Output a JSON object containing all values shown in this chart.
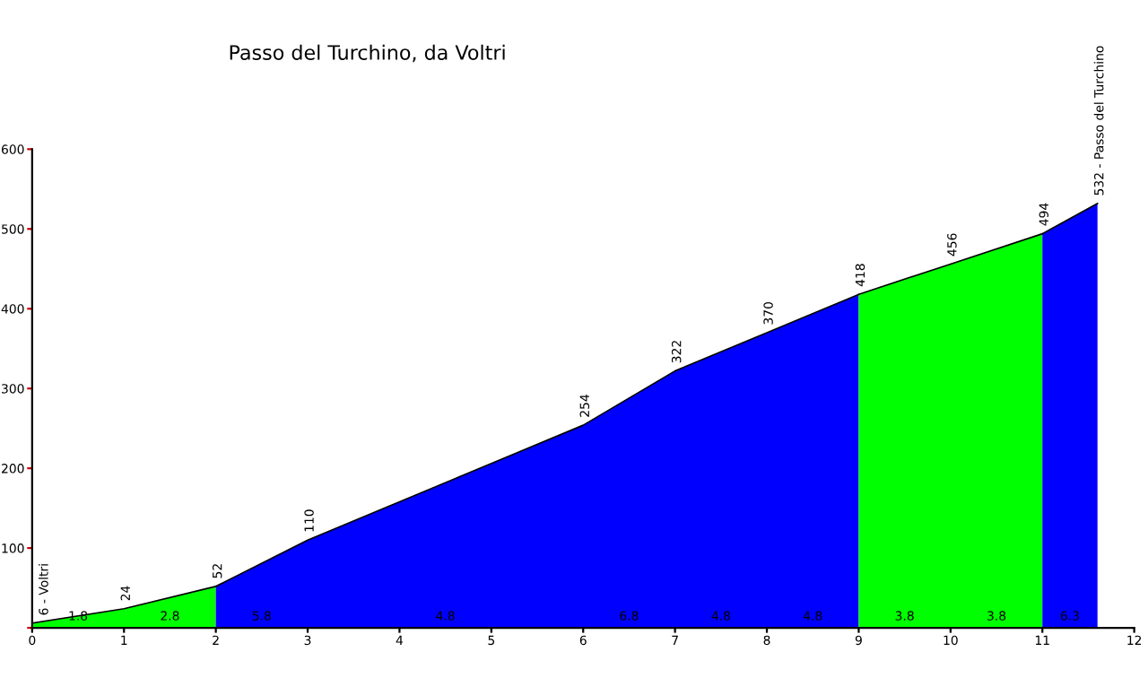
{
  "chart_data": {
    "type": "area",
    "title": "Passo del Turchino, da Voltri",
    "series": [
      {
        "color": "#00ff00",
        "x": [
          0,
          1,
          2
        ],
        "values": [
          6,
          24,
          52
        ]
      },
      {
        "color": "#0000ff",
        "x": [
          2,
          3,
          6,
          7,
          8,
          9
        ],
        "values": [
          52,
          110,
          254,
          322,
          370,
          418
        ]
      },
      {
        "color": "#00ff00",
        "x": [
          9,
          10,
          11
        ],
        "values": [
          418,
          456,
          494
        ]
      },
      {
        "color": "#0000ff",
        "x": [
          11,
          11.6
        ],
        "values": [
          494,
          532
        ]
      }
    ],
    "xlim": [
      0,
      12
    ],
    "xticks": [
      0,
      1,
      2,
      3,
      4,
      5,
      6,
      7,
      8,
      9,
      10,
      11,
      12
    ],
    "ylim": [
      0,
      600
    ],
    "yticks": [
      {
        "value": 0,
        "label": null
      },
      100,
      200,
      300,
      400,
      500,
      600
    ],
    "grid": false,
    "annotations": [
      {
        "text": "6 - Voltri",
        "x": 0,
        "y": 6
      },
      {
        "text": "24",
        "x": 1,
        "y": 24
      },
      {
        "text": "52",
        "x": 2,
        "y": 52
      },
      {
        "text": "110",
        "x": 3,
        "y": 110
      },
      {
        "text": "254",
        "x": 6,
        "y": 254
      },
      {
        "text": "322",
        "x": 7,
        "y": 322
      },
      {
        "text": "370",
        "x": 8,
        "y": 370
      },
      {
        "text": "418",
        "x": 9,
        "y": 418
      },
      {
        "text": "456",
        "x": 10,
        "y": 456
      },
      {
        "text": "494",
        "x": 11,
        "y": 494
      },
      {
        "text": "532 - Passo del Turchino",
        "x": 11.6,
        "y": 532
      },
      {
        "text": "1.8",
        "x": 0.5,
        "y": 0
      },
      {
        "text": "2.8",
        "x": 1.5,
        "y": 0
      },
      {
        "text": "5.8",
        "x": 2.5,
        "y": 0
      },
      {
        "text": "4.8",
        "x": 4.5,
        "y": 0
      },
      {
        "text": "6.8",
        "x": 6.5,
        "y": 0
      },
      {
        "text": "4.8",
        "x": 7.5,
        "y": 0
      },
      {
        "text": "4.8",
        "x": 8.5,
        "y": 0
      },
      {
        "text": "3.8",
        "x": 9.5,
        "y": 0
      },
      {
        "text": "3.8",
        "x": 10.5,
        "y": 0
      },
      {
        "text": "6.3",
        "x": 11.3,
        "y": 0
      }
    ]
  }
}
